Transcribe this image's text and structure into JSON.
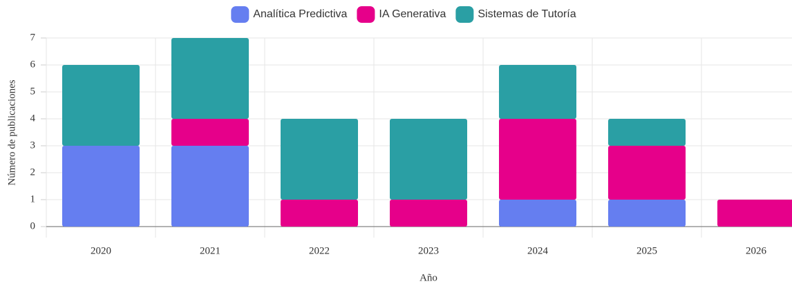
{
  "chart_data": {
    "type": "stacked_bar",
    "x_label": "Año",
    "y_label": "Número de publicaciones",
    "categories": [
      "2020",
      "2021",
      "2022",
      "2023",
      "2024",
      "2025",
      "2026"
    ],
    "series": [
      {
        "name": "Analítica Predictiva",
        "color": "#657ef0",
        "values": [
          3,
          3,
          0,
          0,
          1,
          1,
          0
        ]
      },
      {
        "name": "IA Generativa",
        "color": "#e6008a",
        "values": [
          0,
          1,
          1,
          1,
          3,
          2,
          1
        ]
      },
      {
        "name": "Sistemas de Tutoría",
        "color": "#2a9fa4",
        "values": [
          3,
          3,
          3,
          3,
          2,
          1,
          0
        ]
      }
    ],
    "ylim": [
      0,
      7
    ],
    "yticks": [
      0,
      1,
      2,
      3,
      4,
      5,
      6,
      7
    ],
    "grid": true,
    "legend": "top"
  }
}
